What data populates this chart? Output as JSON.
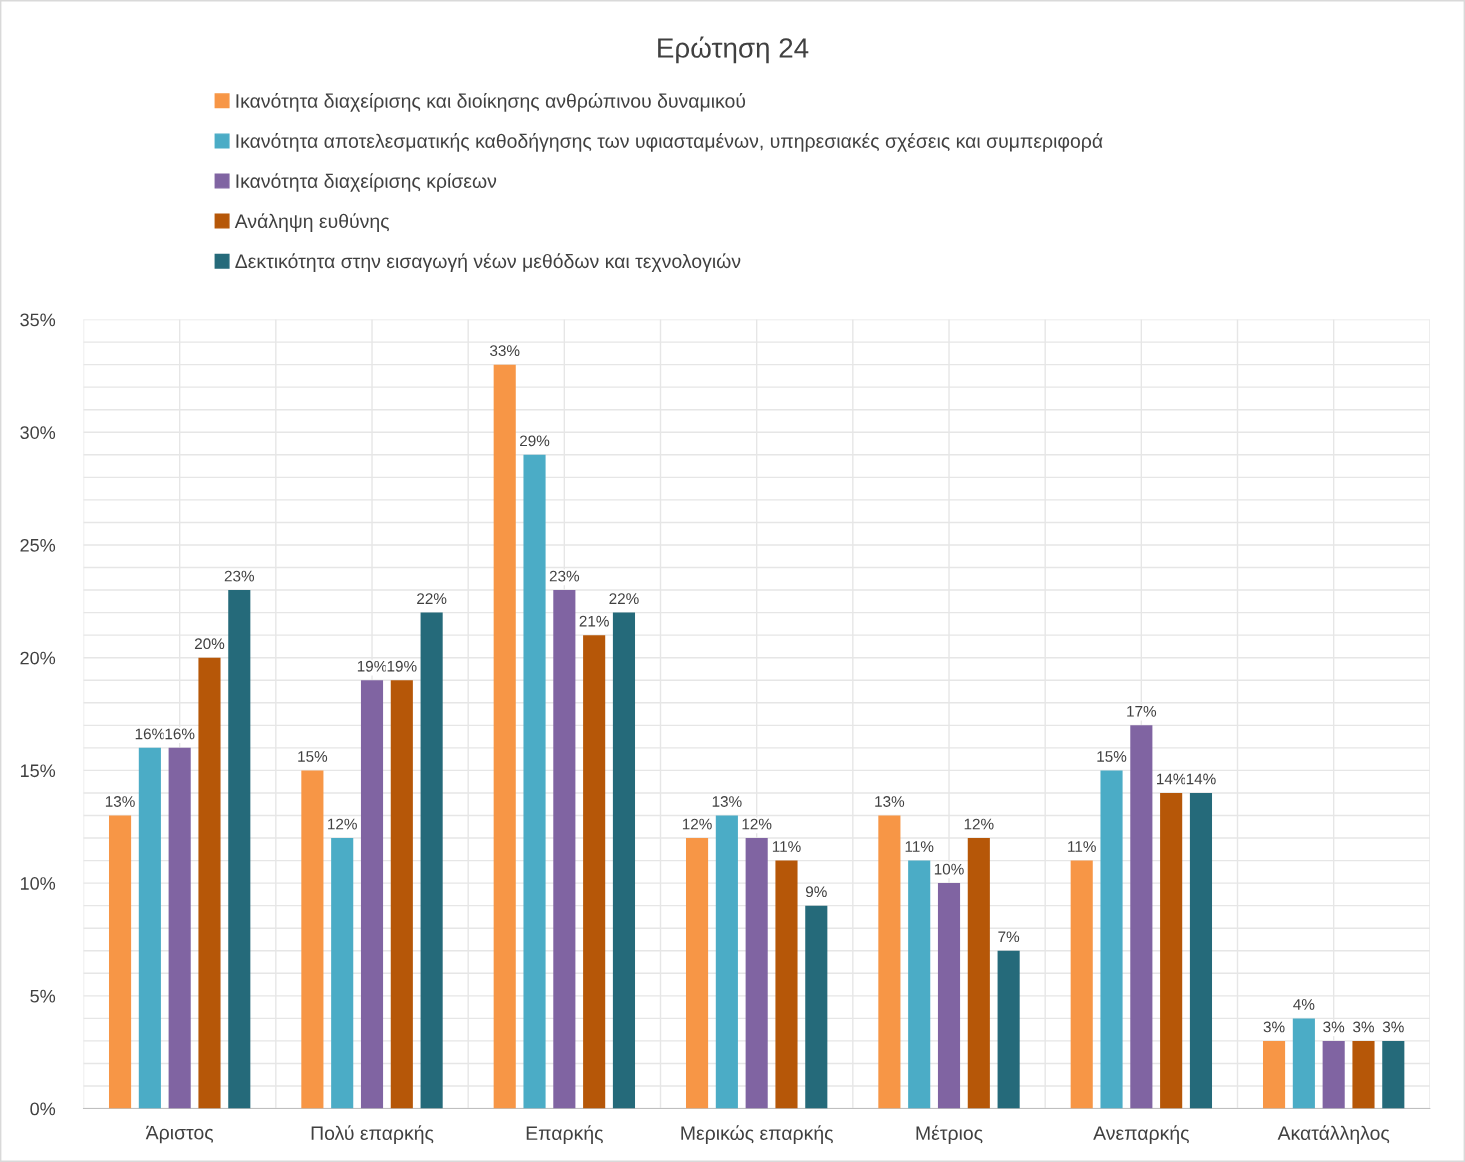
{
  "chart_data": {
    "type": "bar",
    "title": "Ερώτηση 24",
    "categories": [
      "Άριστος",
      "Πολύ επαρκής",
      "Επαρκής",
      "Μερικώς επαρκής",
      "Μέτριος",
      "Ανεπαρκής",
      "Ακατάλληλος"
    ],
    "series": [
      {
        "name": "Ικανότητα διαχείρισης και διοίκησης ανθρώπινου δυναμικού",
        "color": "#f79646",
        "values": [
          13,
          15,
          33,
          12,
          13,
          11,
          3
        ],
        "value_labels": [
          "13%",
          "15%",
          "33%",
          "12%",
          "13%",
          "11%",
          "3%"
        ]
      },
      {
        "name": "Ικανότητα αποτελεσματικής καθοδήγησης των υφιασταμένων, υπηρεσιακές σχέσεις και συμπεριφορά",
        "color": "#4bacc6",
        "values": [
          16,
          12,
          29,
          13,
          11,
          15,
          4
        ],
        "value_labels": [
          "16%",
          "12%",
          "29%",
          "13%",
          "11%",
          "15%",
          "4%"
        ]
      },
      {
        "name": "Ικανότητα διαχείρισης κρίσεων",
        "color": "#8064a2",
        "values": [
          16,
          19,
          23,
          12,
          10,
          17,
          3
        ],
        "value_labels": [
          "16%",
          "19%",
          "23%",
          "12%",
          "10%",
          "17%",
          "3%"
        ]
      },
      {
        "name": "Ανάληψη ευθύνης",
        "color": "#b65708",
        "values": [
          20,
          19,
          21,
          11,
          12,
          14,
          3
        ],
        "value_labels": [
          "20%",
          "19%",
          "21%",
          "11%",
          "12%",
          "14%",
          "3%"
        ]
      },
      {
        "name": "Δεκτικότητα στην εισαγωγή νέων μεθόδων και τεχνολογιών",
        "color": "#256a7a",
        "values": [
          23,
          22,
          22,
          9,
          7,
          14,
          3
        ],
        "value_labels": [
          "23%",
          "22%",
          "22%",
          "9%",
          "7%",
          "14%",
          "3%"
        ]
      }
    ],
    "ylim": [
      0,
      35
    ],
    "yticks": [
      {
        "value": 0,
        "label": "0%"
      },
      {
        "value": 5,
        "label": "5%"
      },
      {
        "value": 10,
        "label": "10%"
      },
      {
        "value": 15,
        "label": "15%"
      },
      {
        "value": 20,
        "label": "20%"
      },
      {
        "value": 25,
        "label": "25%"
      },
      {
        "value": 30,
        "label": "30%"
      },
      {
        "value": 35,
        "label": "35%"
      }
    ],
    "grid": true,
    "legend": "top"
  }
}
